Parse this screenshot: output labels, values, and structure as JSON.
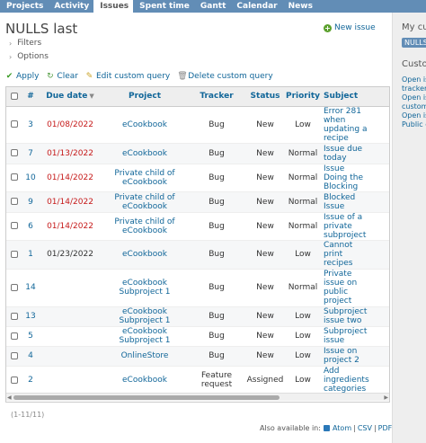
{
  "nav": {
    "tabs": [
      {
        "label": "Projects",
        "active": false
      },
      {
        "label": "Activity",
        "active": false
      },
      {
        "label": "Issues",
        "active": true
      },
      {
        "label": "Spent time",
        "active": false
      },
      {
        "label": "Gantt",
        "active": false
      },
      {
        "label": "Calendar",
        "active": false
      },
      {
        "label": "News",
        "active": false
      }
    ]
  },
  "page": {
    "title": "NULLS last",
    "new_issue_label": "New issue",
    "filters_label": "Filters",
    "options_label": "Options"
  },
  "actions": {
    "apply": "Apply",
    "clear": "Clear",
    "edit_query": "Edit custom query",
    "delete_query": "Delete custom query"
  },
  "table": {
    "headers": {
      "id": "#",
      "due": "Due date",
      "project": "Project",
      "tracker": "Tracker",
      "status": "Status",
      "priority": "Priority",
      "subject": "Subject"
    },
    "rows": [
      {
        "id": "3",
        "due": "01/08/2022",
        "overdue": true,
        "project": "eCookbook",
        "tracker": "Bug",
        "status": "New",
        "priority": "Low",
        "subject": [
          "Error 281",
          "when",
          "updating a",
          "recipe"
        ]
      },
      {
        "id": "7",
        "due": "01/13/2022",
        "overdue": true,
        "project": "eCookbook",
        "tracker": "Bug",
        "status": "New",
        "priority": "Normal",
        "subject": [
          "Issue due",
          "today"
        ]
      },
      {
        "id": "10",
        "due": "01/14/2022",
        "overdue": true,
        "project": "Private child of eCookbook",
        "tracker": "Bug",
        "status": "New",
        "priority": "Normal",
        "subject": [
          "Issue",
          "Doing the",
          "Blocking"
        ]
      },
      {
        "id": "9",
        "due": "01/14/2022",
        "overdue": true,
        "project": "Private child of eCookbook",
        "tracker": "Bug",
        "status": "New",
        "priority": "Normal",
        "subject": [
          "Blocked",
          "Issue"
        ]
      },
      {
        "id": "6",
        "due": "01/14/2022",
        "overdue": true,
        "project": "Private child of eCookbook",
        "tracker": "Bug",
        "status": "New",
        "priority": "Normal",
        "subject": [
          "Issue of a",
          "private",
          "subproject"
        ]
      },
      {
        "id": "1",
        "due": "01/23/2022",
        "overdue": false,
        "project": "eCookbook",
        "tracker": "Bug",
        "status": "New",
        "priority": "Low",
        "subject": [
          "Cannot",
          "print",
          "recipes"
        ]
      },
      {
        "id": "14",
        "due": "",
        "overdue": false,
        "project": "eCookbook Subproject 1",
        "tracker": "Bug",
        "status": "New",
        "priority": "Normal",
        "subject": [
          "Private",
          "issue on",
          "public",
          "project"
        ]
      },
      {
        "id": "13",
        "due": "",
        "overdue": false,
        "project": "eCookbook Subproject 1",
        "tracker": "Bug",
        "status": "New",
        "priority": "Low",
        "subject": [
          "Subproject",
          "issue two"
        ]
      },
      {
        "id": "5",
        "due": "",
        "overdue": false,
        "project": "eCookbook Subproject 1",
        "tracker": "Bug",
        "status": "New",
        "priority": "Low",
        "subject": [
          "Subproject",
          "issue"
        ]
      },
      {
        "id": "4",
        "due": "",
        "overdue": false,
        "project": "OnlineStore",
        "tracker": "Bug",
        "status": "New",
        "priority": "Low",
        "subject": [
          "Issue on",
          "project 2"
        ]
      },
      {
        "id": "2",
        "due": "",
        "overdue": false,
        "project": "eCookbook",
        "tracker": "Feature request",
        "status": "Assigned",
        "priority": "Low",
        "subject": [
          "Add",
          "ingredients",
          "categories"
        ]
      }
    ]
  },
  "pagination": "(1-11/11)",
  "other_formats": {
    "label": "Also available in:",
    "atom": "Atom",
    "sep1": "|",
    "csv": "CSV",
    "sep2": "|",
    "pdf": "PDF"
  },
  "sidebar": {
    "title": "My cus",
    "pill": "NULLS l",
    "title2": "Custo",
    "links": [
      "Open is",
      "tracker",
      "Open is",
      "custom",
      "Open is",
      "Public c"
    ]
  },
  "colors": {
    "nav": "#628db6",
    "link": "#169",
    "overdue": "#c61a1a"
  }
}
